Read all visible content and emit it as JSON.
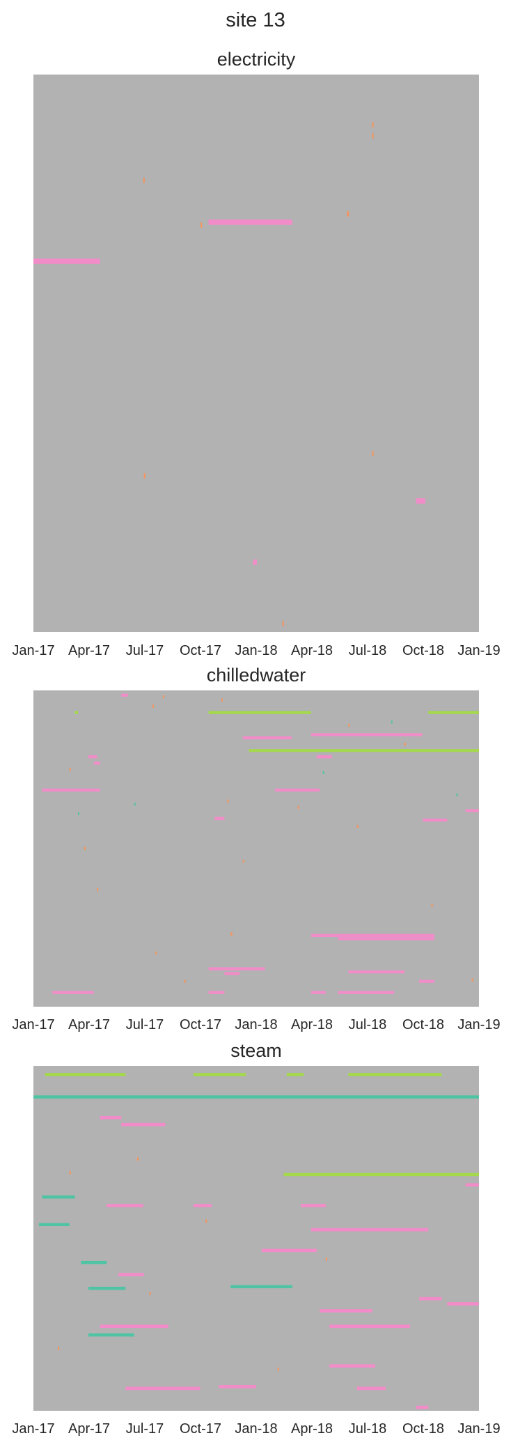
{
  "figure": {
    "title": "site 13",
    "background_color": "#b2b2b2"
  },
  "palette": {
    "pink": "#f28cc8",
    "orange": "#f5945c",
    "teal": "#4fc4a4",
    "lime": "#a3d94a"
  },
  "chart_data": [
    {
      "type": "heatmap",
      "title": "electricity",
      "x_axis": {
        "type": "date",
        "range": [
          "2017-01-01",
          "2019-01-01"
        ],
        "tick_labels": [
          "Jan-17",
          "Apr-17",
          "Jul-17",
          "Oct-17",
          "Jan-18",
          "Apr-18",
          "Jul-18",
          "Oct-18",
          "Jan-19"
        ]
      },
      "y_axis": {
        "visible": false,
        "rows": 100
      },
      "grid": false,
      "legend": "none",
      "segments": [
        {
          "row": 26.5,
          "start": "2017-10-15",
          "end": "2018-03-01",
          "color": "pink"
        },
        {
          "row": 33.5,
          "start": "2017-01-01",
          "end": "2017-04-20",
          "color": "pink"
        },
        {
          "row": 76.5,
          "start": "2018-09-20",
          "end": "2018-10-05",
          "color": "pink"
        },
        {
          "row": 87.5,
          "start": "2017-12-27",
          "end": "2018-01-02",
          "color": "pink"
        },
        {
          "row": 9.0,
          "start": "2018-07-10",
          "end": "2018-07-12",
          "color": "orange"
        },
        {
          "row": 11.0,
          "start": "2018-07-10",
          "end": "2018-07-12",
          "color": "orange"
        },
        {
          "row": 19.0,
          "start": "2017-06-30",
          "end": "2017-07-02",
          "color": "orange"
        },
        {
          "row": 25.0,
          "start": "2018-05-30",
          "end": "2018-06-02",
          "color": "orange"
        },
        {
          "row": 27.0,
          "start": "2017-10-02",
          "end": "2017-10-04",
          "color": "orange"
        },
        {
          "row": 72.0,
          "start": "2017-07-01",
          "end": "2017-07-03",
          "color": "orange"
        },
        {
          "row": 68.0,
          "start": "2018-07-10",
          "end": "2018-07-12",
          "color": "orange"
        },
        {
          "row": 98.5,
          "start": "2018-02-13",
          "end": "2018-02-15",
          "color": "orange"
        }
      ]
    },
    {
      "type": "heatmap",
      "title": "chilledwater",
      "x_axis": {
        "type": "date",
        "range": [
          "2017-01-01",
          "2019-01-01"
        ],
        "tick_labels": [
          "Jan-17",
          "Apr-17",
          "Jul-17",
          "Oct-17",
          "Jan-18",
          "Apr-18",
          "Jul-18",
          "Oct-18",
          "Jan-19"
        ]
      },
      "y_axis": {
        "visible": false,
        "rows": 100
      },
      "grid": false,
      "legend": "none",
      "segments": [
        {
          "row": 1.5,
          "start": "2017-05-25",
          "end": "2017-06-05",
          "color": "pink"
        },
        {
          "row": 7.0,
          "start": "2017-10-15",
          "end": "2018-04-01",
          "color": "lime"
        },
        {
          "row": 7.0,
          "start": "2018-10-10",
          "end": "2019-01-01",
          "color": "lime"
        },
        {
          "row": 7.0,
          "start": "2017-03-10",
          "end": "2017-03-15",
          "color": "lime"
        },
        {
          "row": 14.0,
          "start": "2018-04-01",
          "end": "2018-09-30",
          "color": "pink"
        },
        {
          "row": 15.0,
          "start": "2017-12-10",
          "end": "2018-02-28",
          "color": "pink"
        },
        {
          "row": 19.0,
          "start": "2017-12-20",
          "end": "2019-01-01",
          "color": "lime"
        },
        {
          "row": 21.0,
          "start": "2018-04-10",
          "end": "2018-05-05",
          "color": "pink"
        },
        {
          "row": 21.0,
          "start": "2017-04-01",
          "end": "2017-04-15",
          "color": "pink"
        },
        {
          "row": 23.0,
          "start": "2017-04-10",
          "end": "2017-04-20",
          "color": "pink"
        },
        {
          "row": 31.5,
          "start": "2017-01-15",
          "end": "2017-04-20",
          "color": "pink"
        },
        {
          "row": 31.5,
          "start": "2018-02-01",
          "end": "2018-04-15",
          "color": "pink"
        },
        {
          "row": 38.0,
          "start": "2018-12-10",
          "end": "2019-01-01",
          "color": "pink"
        },
        {
          "row": 40.5,
          "start": "2017-10-25",
          "end": "2017-11-10",
          "color": "pink"
        },
        {
          "row": 41.0,
          "start": "2018-10-01",
          "end": "2018-11-10",
          "color": "pink"
        },
        {
          "row": 77.5,
          "start": "2018-04-01",
          "end": "2018-10-20",
          "color": "pink"
        },
        {
          "row": 78.5,
          "start": "2018-05-15",
          "end": "2018-10-20",
          "color": "pink"
        },
        {
          "row": 88.0,
          "start": "2017-10-15",
          "end": "2018-01-15",
          "color": "pink"
        },
        {
          "row": 89.5,
          "start": "2017-11-10",
          "end": "2017-12-05",
          "color": "pink"
        },
        {
          "row": 89.0,
          "start": "2018-06-01",
          "end": "2018-09-01",
          "color": "pink"
        },
        {
          "row": 92.0,
          "start": "2018-09-25",
          "end": "2018-10-20",
          "color": "pink"
        },
        {
          "row": 95.5,
          "start": "2017-10-15",
          "end": "2017-11-10",
          "color": "pink"
        },
        {
          "row": 95.5,
          "start": "2018-04-01",
          "end": "2018-04-25",
          "color": "pink"
        },
        {
          "row": 95.5,
          "start": "2018-05-15",
          "end": "2018-08-15",
          "color": "pink"
        },
        {
          "row": 95.5,
          "start": "2017-02-01",
          "end": "2017-04-10",
          "color": "pink"
        },
        {
          "row": 2.0,
          "start": "2017-08-01",
          "end": "2017-08-03",
          "color": "orange"
        },
        {
          "row": 3.0,
          "start": "2017-11-05",
          "end": "2017-11-07",
          "color": "orange"
        },
        {
          "row": 5.0,
          "start": "2017-07-15",
          "end": "2017-07-17",
          "color": "orange"
        },
        {
          "row": 11.0,
          "start": "2018-06-01",
          "end": "2018-06-03",
          "color": "orange"
        },
        {
          "row": 17.0,
          "start": "2018-09-01",
          "end": "2018-09-03",
          "color": "orange"
        },
        {
          "row": 25.0,
          "start": "2017-03-01",
          "end": "2017-03-03",
          "color": "orange"
        },
        {
          "row": 35.0,
          "start": "2017-11-15",
          "end": "2017-11-17",
          "color": "orange"
        },
        {
          "row": 37.0,
          "start": "2018-03-10",
          "end": "2018-03-12",
          "color": "orange"
        },
        {
          "row": 43.0,
          "start": "2018-06-15",
          "end": "2018-06-17",
          "color": "orange"
        },
        {
          "row": 50.0,
          "start": "2017-03-25",
          "end": "2017-03-27",
          "color": "orange"
        },
        {
          "row": 54.0,
          "start": "2017-12-10",
          "end": "2017-12-12",
          "color": "orange"
        },
        {
          "row": 63.0,
          "start": "2017-04-15",
          "end": "2017-04-17",
          "color": "orange"
        },
        {
          "row": 68.0,
          "start": "2018-10-15",
          "end": "2018-10-17",
          "color": "orange"
        },
        {
          "row": 77.0,
          "start": "2017-11-20",
          "end": "2017-11-23",
          "color": "orange"
        },
        {
          "row": 83.0,
          "start": "2017-07-20",
          "end": "2017-07-22",
          "color": "orange"
        },
        {
          "row": 92.0,
          "start": "2017-09-05",
          "end": "2017-09-07",
          "color": "orange"
        },
        {
          "row": 91.5,
          "start": "2018-12-20",
          "end": "2018-12-22",
          "color": "orange"
        },
        {
          "row": 26.0,
          "start": "2018-04-20",
          "end": "2018-04-22",
          "color": "teal"
        },
        {
          "row": 36.0,
          "start": "2017-06-15",
          "end": "2017-06-17",
          "color": "teal"
        },
        {
          "row": 39.0,
          "start": "2017-03-15",
          "end": "2017-03-17",
          "color": "teal"
        },
        {
          "row": 33.0,
          "start": "2018-11-25",
          "end": "2018-11-27",
          "color": "teal"
        },
        {
          "row": 10.0,
          "start": "2018-08-10",
          "end": "2018-08-12",
          "color": "teal"
        }
      ]
    },
    {
      "type": "heatmap",
      "title": "steam",
      "x_axis": {
        "type": "date",
        "range": [
          "2017-01-01",
          "2019-01-01"
        ],
        "tick_labels": [
          "Jan-17",
          "Apr-17",
          "Jul-17",
          "Oct-17",
          "Jan-18",
          "Apr-18",
          "Jul-18",
          "Oct-18",
          "Jan-19"
        ]
      },
      "y_axis": {
        "visible": false,
        "rows": 100
      },
      "grid": false,
      "legend": "none",
      "segments": [
        {
          "row": 2.5,
          "start": "2017-01-20",
          "end": "2017-06-01",
          "color": "lime"
        },
        {
          "row": 2.5,
          "start": "2017-09-20",
          "end": "2017-12-15",
          "color": "lime"
        },
        {
          "row": 2.5,
          "start": "2018-02-20",
          "end": "2018-03-20",
          "color": "lime"
        },
        {
          "row": 2.5,
          "start": "2018-06-01",
          "end": "2018-11-01",
          "color": "lime"
        },
        {
          "row": 31.5,
          "start": "2018-02-15",
          "end": "2019-01-01",
          "color": "lime"
        },
        {
          "row": 9.0,
          "start": "2017-01-01",
          "end": "2019-01-01",
          "color": "teal"
        },
        {
          "row": 17.0,
          "start": "2017-05-25",
          "end": "2017-08-05",
          "color": "pink"
        },
        {
          "row": 15.0,
          "start": "2017-04-20",
          "end": "2017-05-25",
          "color": "pink"
        },
        {
          "row": 40.5,
          "start": "2017-05-01",
          "end": "2017-06-30",
          "color": "pink"
        },
        {
          "row": 40.5,
          "start": "2017-09-20",
          "end": "2017-10-20",
          "color": "pink"
        },
        {
          "row": 40.5,
          "start": "2018-03-15",
          "end": "2018-04-25",
          "color": "pink"
        },
        {
          "row": 34.5,
          "start": "2018-12-10",
          "end": "2019-01-01",
          "color": "pink"
        },
        {
          "row": 47.5,
          "start": "2018-04-01",
          "end": "2018-10-10",
          "color": "pink"
        },
        {
          "row": 53.5,
          "start": "2018-01-10",
          "end": "2018-04-10",
          "color": "pink"
        },
        {
          "row": 60.5,
          "start": "2017-05-20",
          "end": "2017-07-01",
          "color": "pink"
        },
        {
          "row": 67.5,
          "start": "2018-09-25",
          "end": "2018-11-01",
          "color": "pink"
        },
        {
          "row": 69.0,
          "start": "2018-11-10",
          "end": "2019-01-01",
          "color": "pink"
        },
        {
          "row": 71.0,
          "start": "2018-04-15",
          "end": "2018-07-10",
          "color": "pink"
        },
        {
          "row": 75.5,
          "start": "2017-04-20",
          "end": "2017-08-10",
          "color": "pink"
        },
        {
          "row": 75.5,
          "start": "2018-05-01",
          "end": "2018-09-10",
          "color": "pink"
        },
        {
          "row": 87.0,
          "start": "2018-05-01",
          "end": "2018-07-15",
          "color": "pink"
        },
        {
          "row": 93.5,
          "start": "2017-06-01",
          "end": "2017-10-01",
          "color": "pink"
        },
        {
          "row": 93.0,
          "start": "2017-11-01",
          "end": "2018-01-01",
          "color": "pink"
        },
        {
          "row": 93.5,
          "start": "2018-06-15",
          "end": "2018-08-01",
          "color": "pink"
        },
        {
          "row": 99.0,
          "start": "2018-09-20",
          "end": "2018-10-10",
          "color": "pink"
        },
        {
          "row": 31.0,
          "start": "2017-03-01",
          "end": "2017-03-03",
          "color": "orange"
        },
        {
          "row": 27.0,
          "start": "2017-06-20",
          "end": "2017-06-22",
          "color": "orange"
        },
        {
          "row": 45.0,
          "start": "2017-10-10",
          "end": "2017-10-12",
          "color": "orange"
        },
        {
          "row": 56.0,
          "start": "2018-04-25",
          "end": "2018-04-27",
          "color": "orange"
        },
        {
          "row": 66.0,
          "start": "2017-07-10",
          "end": "2017-07-12",
          "color": "orange"
        },
        {
          "row": 82.0,
          "start": "2017-02-10",
          "end": "2017-02-12",
          "color": "orange"
        },
        {
          "row": 88.0,
          "start": "2018-02-05",
          "end": "2018-02-07",
          "color": "orange"
        },
        {
          "row": 38.0,
          "start": "2017-01-15",
          "end": "2017-03-10",
          "color": "teal"
        },
        {
          "row": 46.0,
          "start": "2017-01-10",
          "end": "2017-03-01",
          "color": "teal"
        },
        {
          "row": 57.0,
          "start": "2017-03-20",
          "end": "2017-05-01",
          "color": "teal"
        },
        {
          "row": 64.5,
          "start": "2017-04-01",
          "end": "2017-06-01",
          "color": "teal"
        },
        {
          "row": 78.0,
          "start": "2017-04-01",
          "end": "2017-06-15",
          "color": "teal"
        },
        {
          "row": 64.0,
          "start": "2017-11-20",
          "end": "2018-03-01",
          "color": "teal"
        }
      ]
    }
  ]
}
